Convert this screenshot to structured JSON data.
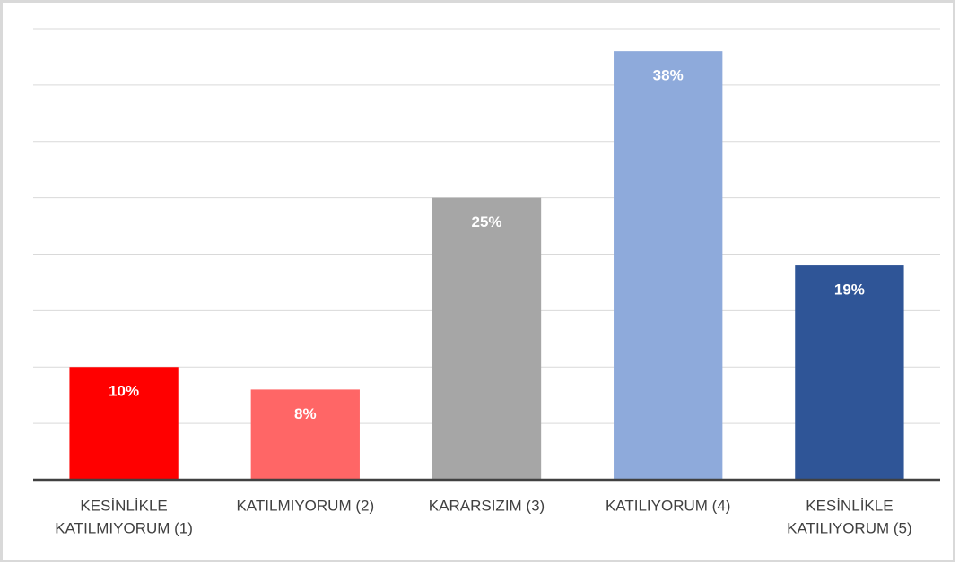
{
  "chart_data": {
    "type": "bar",
    "categories": [
      [
        "KESİNLİKLE",
        "KATILMIYORUM (1)"
      ],
      [
        "KATILMIYORUM (2)"
      ],
      [
        "KARARSIZIM (3)"
      ],
      [
        "KATILIYORUM (4)"
      ],
      [
        "KESİNLİKLE",
        "KATILIYORUM (5)"
      ]
    ],
    "values": [
      10,
      8,
      25,
      38,
      19
    ],
    "value_labels": [
      "10%",
      "8%",
      "25%",
      "38%",
      "19%"
    ],
    "colors": [
      "#ff0000",
      "#ff6666",
      "#a6a6a6",
      "#8eaadb",
      "#2f5597"
    ],
    "ylim": [
      0,
      40
    ],
    "yticks": [
      0,
      5,
      10,
      15,
      20,
      25,
      30,
      35,
      40
    ],
    "grid": true
  }
}
